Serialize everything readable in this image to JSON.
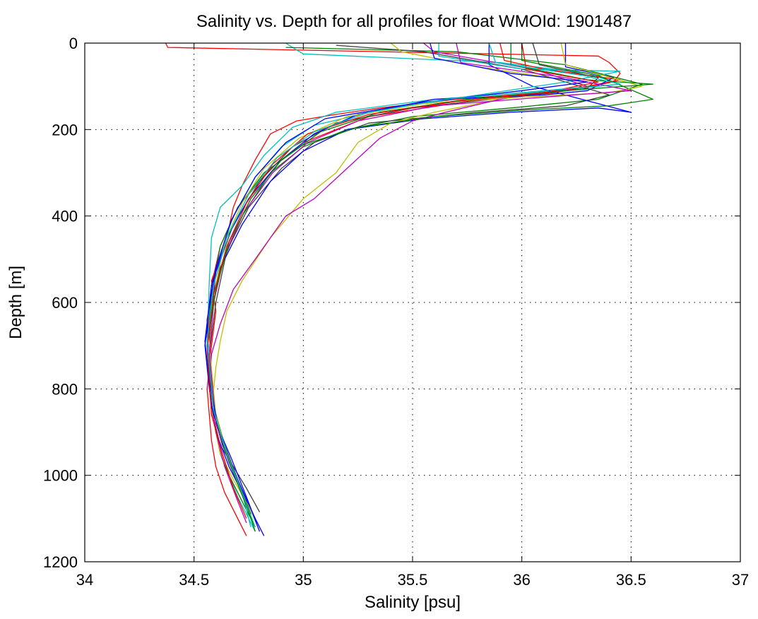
{
  "chart_data": {
    "type": "line",
    "title": "Salinity vs. Depth for all profiles for float WMOId: 1901487",
    "xlabel": "Salinity [psu]",
    "ylabel": "Depth [m]",
    "xlim": [
      34,
      37
    ],
    "ylim": [
      0,
      1200
    ],
    "y_reversed": true,
    "grid": "dotted",
    "xticks": [
      "34",
      "34.5",
      "35",
      "35.5",
      "36",
      "36.5",
      "37"
    ],
    "yticks": [
      "0",
      "200",
      "400",
      "600",
      "800",
      "1000",
      "1200"
    ],
    "colors": [
      "#ff0000",
      "#00bfbf",
      "#008000",
      "#404040",
      "#0000ff",
      "#bfbf00",
      "#bf00bf"
    ],
    "series": [
      {
        "color": "#ff0000",
        "x": [
          34.37,
          34.38,
          36.35,
          36.4,
          36.45,
          36.42,
          36.2,
          35.7,
          35.35,
          35.15,
          34.97,
          34.85,
          34.78,
          34.72,
          34.68,
          34.65,
          34.58,
          34.6,
          34.58,
          34.56,
          34.57,
          34.58,
          34.6,
          34.64,
          34.7,
          34.74
        ],
        "y": [
          0,
          10,
          30,
          45,
          70,
          90,
          110,
          130,
          150,
          165,
          180,
          210,
          270,
          330,
          380,
          450,
          550,
          620,
          700,
          800,
          860,
          920,
          980,
          1040,
          1100,
          1140
        ]
      },
      {
        "color": "#00bfbf",
        "x": [
          34.92,
          34.95,
          35.0,
          35.9,
          36.3,
          36.45,
          36.15,
          35.6,
          35.15,
          34.95,
          34.82,
          34.72,
          34.62,
          34.58,
          34.57,
          34.56,
          34.58,
          34.62,
          34.66,
          34.7,
          34.75,
          34.78
        ],
        "y": [
          0,
          10,
          25,
          45,
          70,
          95,
          110,
          130,
          160,
          195,
          260,
          330,
          380,
          450,
          550,
          700,
          850,
          950,
          1000,
          1050,
          1100,
          1130
        ]
      },
      {
        "color": "#008000",
        "x": [
          34.92,
          35.7,
          36.2,
          36.55,
          36.35,
          35.95,
          35.5,
          35.2,
          35.0,
          34.85,
          34.72,
          34.62,
          34.58,
          34.56,
          34.58,
          34.62,
          34.66,
          34.72,
          34.78
        ],
        "y": [
          10,
          20,
          50,
          95,
          130,
          150,
          170,
          200,
          240,
          300,
          400,
          520,
          620,
          700,
          850,
          950,
          1000,
          1060,
          1120
        ]
      },
      {
        "color": "#404040",
        "x": [
          35.15,
          35.55,
          36.0,
          36.4,
          36.2,
          35.8,
          35.3,
          35.05,
          34.9,
          34.75,
          34.65,
          34.6,
          34.57,
          34.58,
          34.62,
          34.68,
          34.74,
          34.8
        ],
        "y": [
          5,
          20,
          60,
          120,
          145,
          160,
          185,
          230,
          290,
          380,
          480,
          600,
          720,
          850,
          930,
          980,
          1030,
          1085
        ]
      },
      {
        "color": "#0000ff",
        "x": [
          35.85,
          35.85,
          36.05,
          36.5,
          36.35,
          35.95,
          35.55,
          35.2,
          35.0,
          34.85,
          34.72,
          34.62,
          34.57,
          34.55,
          34.57,
          34.6,
          34.66,
          34.72,
          34.78,
          34.82
        ],
        "y": [
          0,
          50,
          100,
          160,
          150,
          160,
          175,
          200,
          250,
          320,
          420,
          520,
          620,
          700,
          800,
          900,
          980,
          1040,
          1100,
          1140
        ]
      },
      {
        "color": "#bfbf00",
        "x": [
          35.4,
          35.45,
          35.8,
          36.2,
          36.3,
          35.9,
          35.6,
          35.4,
          35.25,
          35.15,
          35.0,
          34.85,
          34.72,
          34.65,
          34.62,
          34.6,
          34.58,
          34.62,
          34.68,
          34.75,
          34.8
        ],
        "y": [
          0,
          20,
          55,
          85,
          100,
          130,
          160,
          185,
          230,
          300,
          360,
          450,
          550,
          620,
          690,
          750,
          850,
          950,
          1010,
          1070,
          1130
        ]
      },
      {
        "color": "#bf00bf",
        "x": [
          35.55,
          35.6,
          36.05,
          36.3,
          35.9,
          35.65,
          35.5,
          35.35,
          35.2,
          35.05,
          34.92,
          34.78,
          34.68,
          34.62,
          34.58,
          34.57,
          34.6,
          34.64,
          34.7,
          34.74
        ],
        "y": [
          0,
          20,
          60,
          100,
          130,
          160,
          180,
          220,
          290,
          360,
          400,
          500,
          570,
          650,
          720,
          800,
          900,
          980,
          1060,
          1110
        ]
      },
      {
        "color": "#ff0000",
        "x": [
          35.9,
          35.92,
          36.1,
          36.45,
          36.15,
          35.75,
          35.3,
          35.0,
          34.85,
          34.7,
          34.62,
          34.58,
          34.56,
          34.58,
          34.63,
          34.7,
          34.76
        ],
        "y": [
          0,
          40,
          60,
          85,
          115,
          135,
          170,
          230,
          290,
          380,
          470,
          560,
          680,
          820,
          920,
          1010,
          1090
        ]
      },
      {
        "color": "#00bfbf",
        "x": [
          35.62,
          35.62,
          36.0,
          36.45,
          36.2,
          35.8,
          35.35,
          35.05,
          34.9,
          34.78,
          34.68,
          34.6,
          34.56,
          34.57,
          34.6,
          34.66,
          34.72,
          34.76
        ],
        "y": [
          0,
          30,
          60,
          65,
          90,
          120,
          155,
          190,
          240,
          310,
          400,
          520,
          650,
          780,
          880,
          970,
          1040,
          1120
        ]
      },
      {
        "color": "#008000",
        "x": [
          36.0,
          36.0,
          36.35,
          36.6,
          36.4,
          36.0,
          35.6,
          35.25,
          35.0,
          34.82,
          34.7,
          34.62,
          34.58,
          34.56,
          34.6,
          34.66,
          34.72,
          34.78
        ],
        "y": [
          0,
          40,
          75,
          130,
          145,
          155,
          170,
          195,
          235,
          300,
          380,
          470,
          580,
          700,
          870,
          970,
          1040,
          1130
        ]
      },
      {
        "color": "#404040",
        "x": [
          36.05,
          36.08,
          36.35,
          36.3,
          35.95,
          35.5,
          35.15,
          34.95,
          34.8,
          34.68,
          34.6,
          34.57,
          34.59,
          34.64,
          34.7,
          34.76
        ],
        "y": [
          0,
          50,
          80,
          105,
          125,
          150,
          185,
          240,
          320,
          420,
          530,
          680,
          840,
          930,
          1010,
          1090
        ]
      },
      {
        "color": "#0000ff",
        "x": [
          36.2,
          36.2,
          36.42,
          36.3,
          36.1,
          35.6,
          35.25,
          35.05,
          34.9,
          34.75,
          34.65,
          34.58,
          34.55,
          34.58,
          34.63,
          34.7,
          34.78
        ],
        "y": [
          0,
          55,
          80,
          110,
          120,
          130,
          165,
          210,
          270,
          360,
          450,
          560,
          690,
          840,
          930,
          1010,
          1100
        ]
      },
      {
        "color": "#bfbf00",
        "x": [
          36.18,
          36.2,
          36.55,
          36.4,
          36.0,
          35.55,
          35.2,
          34.98,
          34.82,
          34.72,
          34.64,
          34.6,
          34.57,
          34.6,
          34.65,
          34.72
        ],
        "y": [
          0,
          50,
          100,
          115,
          125,
          140,
          170,
          220,
          290,
          370,
          460,
          560,
          700,
          860,
          950,
          1040
        ]
      },
      {
        "color": "#bf00bf",
        "x": [
          35.7,
          35.72,
          36.2,
          36.5,
          36.1,
          35.6,
          35.25,
          35.02,
          34.86,
          34.73,
          34.64,
          34.59,
          34.57,
          34.6,
          34.66,
          34.74
        ],
        "y": [
          0,
          45,
          80,
          110,
          125,
          145,
          180,
          230,
          300,
          390,
          490,
          600,
          720,
          880,
          970,
          1070
        ]
      },
      {
        "color": "#0000ff",
        "x": [
          35.58,
          35.6,
          35.95,
          36.3,
          36.0,
          35.5,
          35.1,
          34.92,
          34.78,
          34.67,
          34.6,
          34.56,
          34.57,
          34.61,
          34.67,
          34.74,
          34.8
        ],
        "y": [
          0,
          35,
          70,
          90,
          110,
          140,
          175,
          230,
          310,
          410,
          520,
          640,
          780,
          890,
          960,
          1050,
          1130
        ]
      },
      {
        "color": "#008000",
        "x": [
          35.95,
          35.95,
          36.3,
          36.6,
          36.2,
          35.75,
          35.35,
          35.08,
          34.9,
          34.76,
          34.66,
          34.6,
          34.56,
          34.59,
          34.64,
          34.7,
          34.77
        ],
        "y": [
          0,
          50,
          85,
          95,
          110,
          130,
          160,
          205,
          270,
          360,
          460,
          570,
          700,
          850,
          940,
          1020,
          1110
        ]
      },
      {
        "color": "#ff0000",
        "x": [
          36.0,
          36.02,
          36.35,
          36.1,
          35.7,
          35.3,
          35.02,
          34.86,
          34.74,
          34.65,
          34.59,
          34.56,
          34.58,
          34.63,
          34.68,
          34.74
        ],
        "y": [
          0,
          60,
          90,
          115,
          135,
          165,
          210,
          280,
          370,
          470,
          580,
          710,
          860,
          950,
          1030,
          1100
        ]
      },
      {
        "color": "#00bfbf",
        "x": [
          35.85,
          35.88,
          36.28,
          36.45,
          36.1,
          35.65,
          35.3,
          35.05,
          34.88,
          34.75,
          34.65,
          34.59,
          34.56,
          34.59,
          34.65,
          34.72,
          34.78
        ],
        "y": [
          0,
          45,
          75,
          95,
          110,
          130,
          160,
          205,
          265,
          350,
          450,
          560,
          690,
          850,
          950,
          1040,
          1120
        ]
      }
    ]
  }
}
